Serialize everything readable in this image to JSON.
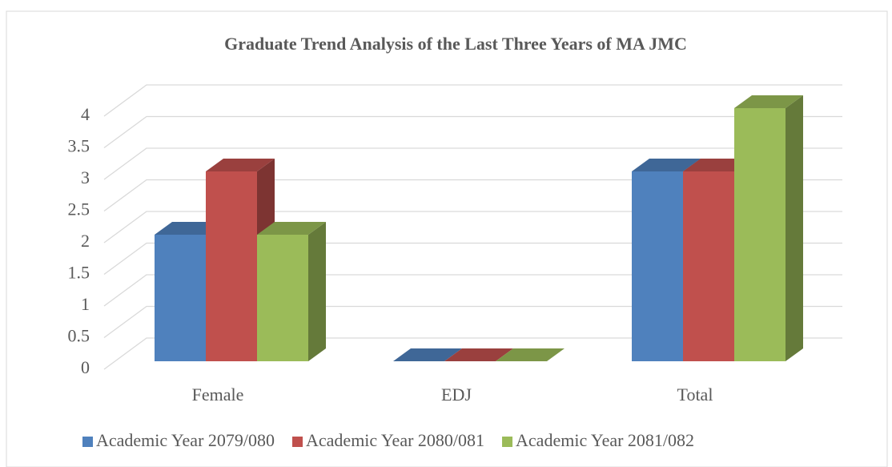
{
  "chart_data": {
    "type": "bar3d",
    "title": "Graduate Trend Analysis of the Last Three Years of MA JMC",
    "categories": [
      "Female",
      "EDJ",
      "Total"
    ],
    "series": [
      {
        "name": "Academic Year 2079/080",
        "color": "#4f81bd",
        "values": [
          2,
          0,
          3
        ]
      },
      {
        "name": "Academic Year 2080/081",
        "color": "#c0504d",
        "values": [
          3,
          0,
          3
        ]
      },
      {
        "name": "Academic Year 2081/082",
        "color": "#9bbb59",
        "values": [
          2,
          0,
          4
        ]
      }
    ],
    "ylim": [
      0,
      4
    ],
    "yticks": [
      0,
      0.5,
      1,
      1.5,
      2,
      2.5,
      3,
      3.5,
      4
    ],
    "grid": true,
    "legend": "bottom"
  }
}
